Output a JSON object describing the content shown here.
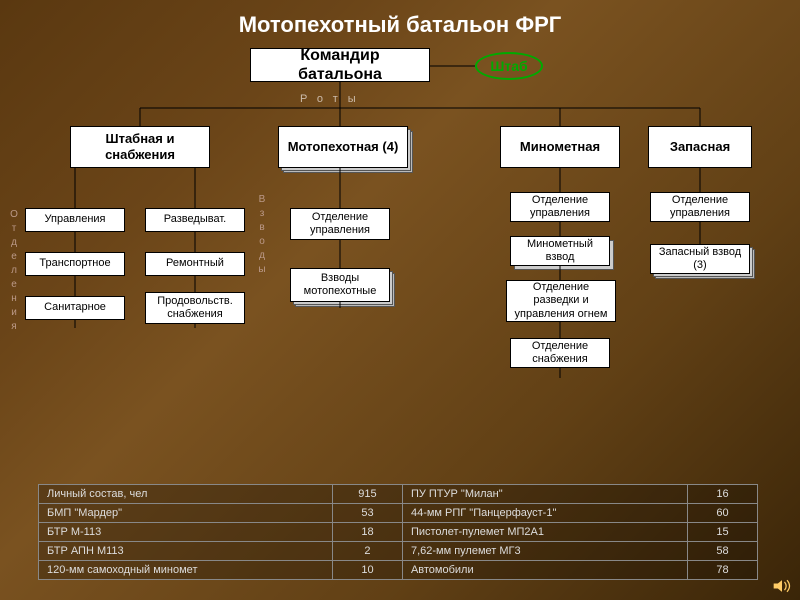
{
  "title": "Мотопехотный батальон ФРГ",
  "commander": "Командир батальона",
  "shtab": "Штаб",
  "section_label_h": "Роты",
  "section_label_v1": "Отделения",
  "section_label_v2": "Взводы",
  "companies": {
    "hq": "Штабная и снабжения",
    "moto": "Мотопехотная (4)",
    "mortar": "Минометная",
    "reserve": "Запасная"
  },
  "hq_units": {
    "c1r1": "Управления",
    "c2r1": "Разведыват.",
    "c1r2": "Транспортное",
    "c2r2": "Ремонтный",
    "c1r3": "Санитарное",
    "c2r3": "Продовольств. снабжения"
  },
  "moto_units": {
    "u1": "Отделение управления",
    "u2": "Взводы мотопехотные"
  },
  "mortar_units": {
    "u1": "Отделение управления",
    "u2": "Минометный взвод",
    "u3": "Отделение разведки и управления огнем",
    "u4": "Отделение снабжения"
  },
  "reserve_units": {
    "u1": "Отделение управления",
    "u2": "Запасный взвод  (3)"
  },
  "table": {
    "rows": [
      [
        "Личный состав, чел",
        "915",
        "ПУ ПТУР \"Милан\"",
        "16"
      ],
      [
        "БМП \"Мардер\"",
        "53",
        "44-мм РПГ \"Панцерфауст-1\"",
        "60"
      ],
      [
        "БТР М-113",
        "18",
        "Пистолет-пулемет МП2А1",
        "15"
      ],
      [
        "БТР АПН М113",
        "2",
        "7,62-мм пулемет МГ3",
        "58"
      ],
      [
        "120-мм самоходный миномет",
        "10",
        "Автомобили",
        "78"
      ]
    ]
  },
  "style": {
    "node_bg": "#ffffff",
    "node_border": "#000000",
    "title_color": "#ffffff",
    "shtab_color": "#00aa00",
    "table_text": "#dddddd",
    "table_border": "#888888"
  }
}
